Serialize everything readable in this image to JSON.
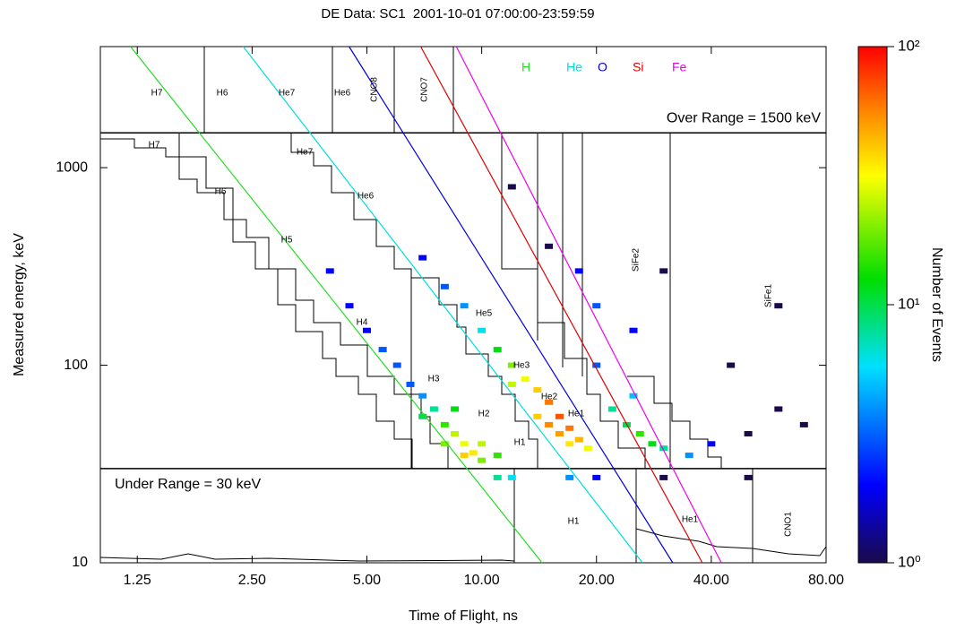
{
  "chart_data": {
    "type": "heatmap",
    "title": "DE Data: SC1  2001-10-01 07:00:00-23:59:59",
    "x_label": "Time of Flight, ns",
    "y_label": "Measured energy, keV",
    "colorbar_label": "Number of Events",
    "xscale": "log",
    "yscale": "log",
    "colorscale": "log",
    "xlim": [
      1.0,
      80
    ],
    "ylim": [
      10,
      4100
    ],
    "clim": [
      1,
      100
    ],
    "xticks": [
      1.25,
      {
        "value": 2.5,
        "label": "2.50"
      },
      {
        "value": 5,
        "label": "5.00"
      },
      {
        "value": 10,
        "label": "10.00"
      },
      {
        "value": 20,
        "label": "20.00"
      },
      {
        "value": 40,
        "label": "40.00"
      },
      {
        "value": 80,
        "label": "80.00"
      }
    ],
    "yticks": [
      10,
      100,
      1000
    ],
    "cticks": [
      {
        "value": 1,
        "label": "10⁰"
      },
      {
        "value": 10,
        "label": "10¹"
      },
      {
        "value": 100,
        "label": "10²"
      }
    ],
    "over_range": "Over Range = 1500 keV",
    "over_range_value": 1500,
    "under_range": "Under Range = 30 keV",
    "under_range_value": 30,
    "series": [
      {
        "name": "H",
        "color": "#22dd22",
        "x": [
          1.2,
          14.4
        ],
        "y": [
          4100,
          10
        ]
      },
      {
        "name": "He",
        "color": "#00dddd",
        "x": [
          2.37,
          26.4
        ],
        "y": [
          4100,
          10
        ]
      },
      {
        "name": "O",
        "color": "#0000dd",
        "x": [
          4.49,
          31.7
        ],
        "y": [
          4100,
          10
        ]
      },
      {
        "name": "Si",
        "color": "#dd0000",
        "x": [
          6.92,
          37.9
        ],
        "y": [
          4100,
          10
        ]
      },
      {
        "name": "Fe",
        "color": "#ee00ee",
        "x": [
          8.58,
          42.5
        ],
        "y": [
          4100,
          10
        ]
      }
    ],
    "regions": [
      "H7",
      "H6",
      "He7",
      "He6",
      "CNO8",
      "CNO7",
      "H1",
      "He1",
      "CNO1",
      "H7",
      "He7",
      "H6",
      "He6",
      "H5",
      "H4",
      "H3",
      "H2",
      "H1",
      "He5",
      "He3",
      "He2",
      "He1",
      "SiFe1",
      "SiFe2"
    ],
    "cells": {
      "x": [
        6.5,
        7,
        7.5,
        8,
        8.5,
        9,
        9.5,
        10,
        7,
        8,
        9,
        6,
        5,
        5.5,
        4.5,
        4,
        8.5,
        10,
        11,
        10,
        11,
        12,
        13,
        14,
        15,
        16,
        17,
        18,
        19,
        12,
        14,
        16,
        9,
        8,
        7,
        15,
        17,
        22,
        24,
        26,
        28,
        25,
        30,
        20,
        35,
        40,
        50,
        60,
        70,
        45,
        60,
        30,
        18,
        20,
        15,
        12,
        25,
        11,
        12,
        17,
        20,
        30,
        50
      ],
      "y": [
        80,
        70,
        60,
        50,
        45,
        40,
        36,
        33,
        55,
        40,
        35,
        100,
        150,
        120,
        200,
        300,
        60,
        40,
        35,
        150,
        120,
        100,
        85,
        75,
        65,
        55,
        48,
        42,
        38,
        80,
        55,
        45,
        200,
        250,
        350,
        50,
        40,
        60,
        50,
        45,
        40,
        70,
        38,
        100,
        35,
        40,
        45,
        60,
        50,
        100,
        200,
        300,
        300,
        200,
        400,
        800,
        150,
        27,
        27,
        27,
        27,
        27,
        27
      ],
      "counts": [
        3,
        4,
        8,
        15,
        25,
        30,
        35,
        20,
        10,
        20,
        40,
        3,
        2,
        3,
        2,
        2,
        12,
        25,
        15,
        6,
        12,
        20,
        30,
        40,
        60,
        70,
        60,
        45,
        30,
        25,
        40,
        50,
        4,
        3,
        2,
        55,
        35,
        8,
        10,
        15,
        12,
        5,
        8,
        3,
        4,
        2,
        1,
        1,
        1,
        1,
        1,
        1,
        2,
        3,
        1,
        1,
        2,
        8,
        6,
        4,
        2,
        1,
        1
      ]
    }
  }
}
